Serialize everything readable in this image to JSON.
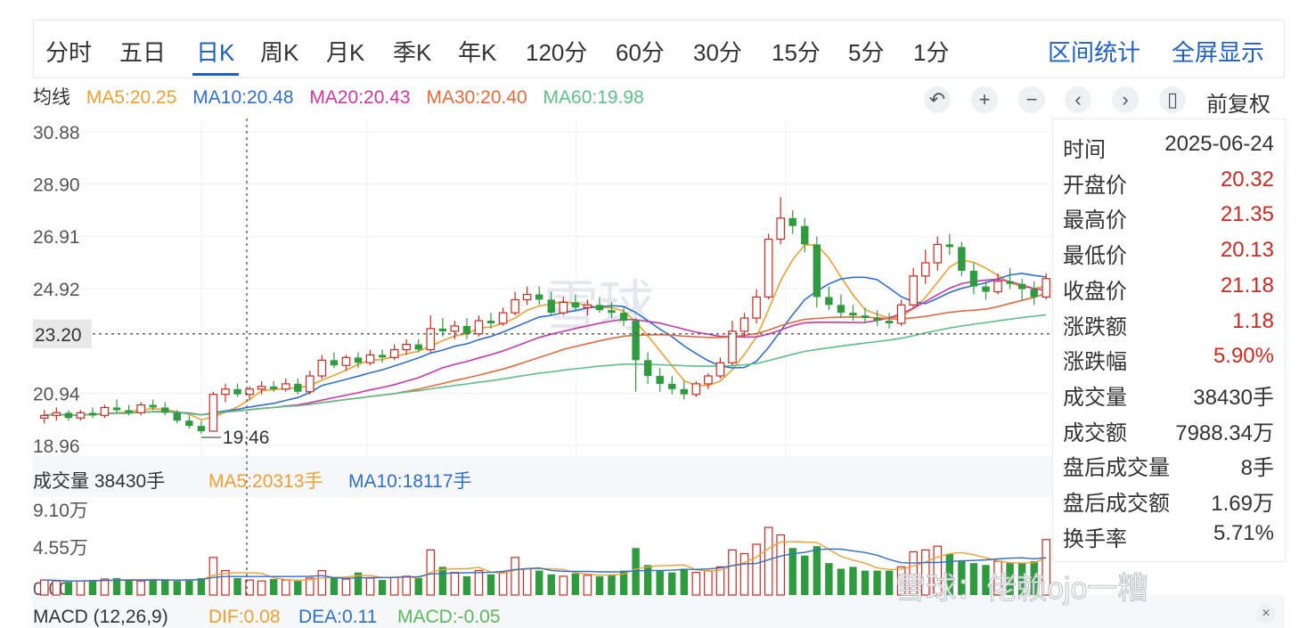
{
  "tabs": [
    "分时",
    "五日",
    "日K",
    "周K",
    "月K",
    "季K",
    "年K",
    "120分",
    "60分",
    "30分",
    "15分",
    "5分",
    "1分"
  ],
  "active_tab": "日K",
  "right_actions": [
    "区间统计",
    "全屏显示"
  ],
  "ma_legend": {
    "title": "均线",
    "items": [
      {
        "label": "MA5:20.25",
        "color": "#f0a030"
      },
      {
        "label": "MA10:20.48",
        "color": "#2f6fd0"
      },
      {
        "label": "MA20:20.43",
        "color": "#d035a8"
      },
      {
        "label": "MA30:20.40",
        "color": "#e8693a"
      },
      {
        "label": "MA60:19.98",
        "color": "#5cc088"
      }
    ]
  },
  "controls": {
    "icons": [
      "undo-icon",
      "zoom-in-icon",
      "zoom-out-icon",
      "prev-icon",
      "next-icon",
      "candle-icon"
    ],
    "adjust_label": "前复权"
  },
  "info": [
    {
      "label": "时间",
      "value": "2025-06-24",
      "red": false
    },
    {
      "label": "开盘价",
      "value": "20.32",
      "red": true
    },
    {
      "label": "最高价",
      "value": "21.35",
      "red": true
    },
    {
      "label": "最低价",
      "value": "20.13",
      "red": true
    },
    {
      "label": "收盘价",
      "value": "21.18",
      "red": true
    },
    {
      "label": "涨跌额",
      "value": "1.18",
      "red": true
    },
    {
      "label": "涨跌幅",
      "value": "5.90%",
      "red": true
    },
    {
      "label": "成交量",
      "value": "38430手",
      "red": false
    },
    {
      "label": "成交额",
      "value": "7988.34万",
      "red": false
    },
    {
      "label": "盘后成交量",
      "value": "8手",
      "red": false
    },
    {
      "label": "盘后成交额",
      "value": "1.69万",
      "red": false
    },
    {
      "label": "换手率",
      "value": "5.71%",
      "red": false
    }
  ],
  "volume_legend": {
    "title": "成交量 38430手",
    "items": [
      {
        "label": "MA5:20313手",
        "color": "#f0a030"
      },
      {
        "label": "MA10:18117手",
        "color": "#2f6fd0"
      }
    ]
  },
  "macd_legend": {
    "title": "MACD (12,26,9)",
    "items": [
      {
        "label": "DIF:0.08",
        "color": "#f0a030"
      },
      {
        "label": "DEA:0.11",
        "color": "#2f6fd0"
      },
      {
        "label": "MACD:-0.05",
        "color": "#5cb85c"
      }
    ]
  },
  "watermark": "雪球",
  "watermark_bottom": "雪球：佬赖ojo一糟",
  "colors": {
    "up": "#d0281f",
    "down": "#2e9b3e",
    "accent": "#1c5fc6"
  },
  "chart_data": {
    "type": "candlestick",
    "price_ylim": [
      18.96,
      30.88
    ],
    "price_ticks": [
      "30.88",
      "28.90",
      "26.91",
      "24.92",
      "20.94",
      "18.96"
    ],
    "crosshair_price": "23.20",
    "min_label": "19.46",
    "volume_ylim": [
      0,
      9.1
    ],
    "volume_ticks": [
      "9.10万",
      "4.55万",
      "0.00"
    ],
    "ohlc": [
      [
        20.0,
        20.3,
        19.8,
        20.1
      ],
      [
        20.1,
        20.4,
        19.9,
        20.2
      ],
      [
        20.2,
        20.3,
        19.9,
        20.0
      ],
      [
        20.0,
        20.3,
        19.9,
        20.2
      ],
      [
        20.2,
        20.4,
        20.0,
        20.1
      ],
      [
        20.1,
        20.5,
        20.0,
        20.4
      ],
      [
        20.4,
        20.7,
        20.2,
        20.3
      ],
      [
        20.3,
        20.5,
        20.1,
        20.2
      ],
      [
        20.2,
        20.6,
        20.1,
        20.5
      ],
      [
        20.5,
        20.7,
        20.3,
        20.4
      ],
      [
        20.4,
        20.6,
        20.1,
        20.2
      ],
      [
        20.2,
        20.3,
        19.8,
        19.9
      ],
      [
        19.9,
        20.1,
        19.6,
        19.7
      ],
      [
        19.7,
        19.9,
        19.4,
        19.5
      ],
      [
        19.5,
        21.0,
        19.5,
        20.9
      ],
      [
        20.9,
        21.3,
        20.6,
        21.1
      ],
      [
        21.1,
        21.3,
        20.8,
        20.9
      ],
      [
        20.9,
        21.2,
        20.7,
        21.1
      ],
      [
        21.1,
        21.4,
        20.9,
        21.2
      ],
      [
        21.2,
        21.4,
        21.0,
        21.1
      ],
      [
        21.1,
        21.5,
        21.0,
        21.3
      ],
      [
        21.3,
        21.5,
        20.9,
        21.0
      ],
      [
        21.0,
        21.8,
        20.9,
        21.6
      ],
      [
        21.6,
        22.4,
        21.5,
        22.2
      ],
      [
        22.2,
        22.5,
        21.9,
        22.0
      ],
      [
        22.0,
        22.4,
        21.8,
        22.3
      ],
      [
        22.3,
        22.5,
        21.9,
        22.1
      ],
      [
        22.1,
        22.6,
        22.0,
        22.4
      ],
      [
        22.4,
        22.6,
        22.1,
        22.3
      ],
      [
        22.3,
        22.8,
        22.2,
        22.6
      ],
      [
        22.6,
        23.0,
        22.4,
        22.8
      ],
      [
        22.8,
        23.0,
        22.5,
        22.6
      ],
      [
        22.6,
        23.9,
        22.5,
        23.4
      ],
      [
        23.4,
        23.8,
        23.1,
        23.3
      ],
      [
        23.3,
        23.7,
        23.0,
        23.5
      ],
      [
        23.5,
        23.8,
        23.0,
        23.2
      ],
      [
        23.2,
        23.9,
        23.1,
        23.7
      ],
      [
        23.7,
        24.0,
        23.4,
        23.6
      ],
      [
        23.6,
        24.2,
        23.5,
        24.0
      ],
      [
        24.0,
        24.8,
        23.9,
        24.5
      ],
      [
        24.5,
        25.0,
        24.3,
        24.7
      ],
      [
        24.7,
        25.0,
        24.3,
        24.5
      ],
      [
        24.5,
        24.8,
        23.9,
        24.0
      ],
      [
        24.0,
        24.6,
        23.9,
        24.4
      ],
      [
        24.4,
        24.7,
        24.1,
        24.2
      ],
      [
        24.2,
        24.5,
        23.9,
        24.3
      ],
      [
        24.3,
        24.6,
        24.0,
        24.1
      ],
      [
        24.1,
        24.4,
        23.8,
        24.0
      ],
      [
        24.0,
        24.2,
        23.5,
        23.7
      ],
      [
        23.7,
        23.8,
        21.0,
        22.2
      ],
      [
        22.2,
        22.5,
        21.3,
        21.6
      ],
      [
        21.6,
        21.9,
        21.0,
        21.3
      ],
      [
        21.3,
        21.6,
        20.9,
        21.1
      ],
      [
        21.1,
        21.4,
        20.7,
        20.9
      ],
      [
        20.9,
        21.4,
        20.8,
        21.3
      ],
      [
        21.3,
        21.7,
        21.1,
        21.6
      ],
      [
        21.6,
        22.3,
        21.5,
        22.1
      ],
      [
        22.1,
        23.7,
        22.0,
        23.3
      ],
      [
        23.3,
        24.0,
        23.1,
        23.8
      ],
      [
        23.8,
        24.9,
        23.6,
        24.6
      ],
      [
        24.6,
        27.0,
        24.5,
        26.8
      ],
      [
        26.8,
        28.4,
        26.6,
        27.6
      ],
      [
        27.6,
        27.9,
        27.0,
        27.3
      ],
      [
        27.3,
        27.6,
        26.3,
        26.6
      ],
      [
        26.6,
        26.9,
        24.2,
        24.6
      ],
      [
        24.6,
        25.0,
        24.1,
        24.3
      ],
      [
        24.3,
        24.7,
        23.8,
        24.0
      ],
      [
        24.0,
        24.3,
        23.7,
        23.9
      ],
      [
        23.9,
        24.2,
        23.6,
        23.8
      ],
      [
        23.8,
        24.1,
        23.5,
        23.7
      ],
      [
        23.7,
        24.0,
        23.4,
        23.6
      ],
      [
        23.6,
        24.5,
        23.5,
        24.3
      ],
      [
        24.3,
        25.7,
        24.2,
        25.4
      ],
      [
        25.4,
        26.4,
        25.1,
        25.9
      ],
      [
        25.9,
        26.9,
        25.6,
        26.6
      ],
      [
        26.6,
        27.0,
        26.2,
        26.5
      ],
      [
        26.5,
        26.7,
        25.4,
        25.6
      ],
      [
        25.6,
        25.9,
        24.7,
        25.0
      ],
      [
        25.0,
        25.2,
        24.5,
        24.8
      ],
      [
        24.8,
        25.5,
        24.7,
        25.2
      ],
      [
        25.2,
        25.7,
        24.9,
        25.1
      ],
      [
        25.1,
        25.3,
        24.5,
        24.9
      ],
      [
        24.9,
        25.2,
        24.3,
        24.6
      ],
      [
        24.6,
        25.5,
        24.5,
        25.3
      ]
    ],
    "volume": [
      1.6,
      1.5,
      1.4,
      1.5,
      1.6,
      1.7,
      1.8,
      1.6,
      1.5,
      1.7,
      1.6,
      1.5,
      1.6,
      1.8,
      4.0,
      2.6,
      1.8,
      1.6,
      1.5,
      1.7,
      1.6,
      1.5,
      1.8,
      2.6,
      1.9,
      1.7,
      2.4,
      1.8,
      1.6,
      1.9,
      2.0,
      1.8,
      4.8,
      3.0,
      2.4,
      2.0,
      2.6,
      2.2,
      2.4,
      4.0,
      2.8,
      2.6,
      2.2,
      2.0,
      2.3,
      2.1,
      2.0,
      2.2,
      2.6,
      5.0,
      3.2,
      2.6,
      2.4,
      2.8,
      2.4,
      2.6,
      3.0,
      4.8,
      4.4,
      5.4,
      7.2,
      6.4,
      5.0,
      4.2,
      5.2,
      3.4,
      2.8,
      3.0,
      2.6,
      2.6,
      2.6,
      3.0,
      4.6,
      4.8,
      5.2,
      4.4,
      3.6,
      3.4,
      3.2,
      3.6,
      3.4,
      3.4,
      3.6,
      5.9
    ]
  }
}
